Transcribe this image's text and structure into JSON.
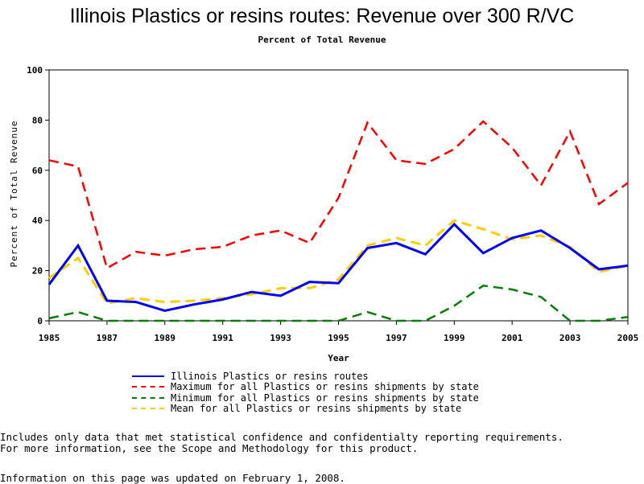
{
  "chart_data": {
    "type": "line",
    "title": "Illinois Plastics or resins routes: Revenue over 300 R/VC",
    "subtitle": "Percent of Total Revenue",
    "xlabel": "Year",
    "ylabel": "Percent of Total Revenue",
    "xlim": [
      1985,
      2005
    ],
    "ylim": [
      0,
      100
    ],
    "x_ticks": [
      "1985",
      "1987",
      "1989",
      "1991",
      "1993",
      "1995",
      "1997",
      "1999",
      "2001",
      "2003",
      "2005"
    ],
    "y_ticks": [
      "0",
      "20",
      "40",
      "60",
      "80",
      "100"
    ],
    "x": [
      1985,
      1986,
      1987,
      1988,
      1989,
      1990,
      1991,
      1992,
      1993,
      1994,
      1995,
      1996,
      1997,
      1998,
      1999,
      2000,
      2001,
      2002,
      2003,
      2004,
      2005
    ],
    "series": [
      {
        "name": "Illinois Plastics or resins routes",
        "color": "#0000ff",
        "dash": "solid",
        "values": [
          14.5,
          30.0,
          8.0,
          7.5,
          4.0,
          6.5,
          8.5,
          11.5,
          10.0,
          15.5,
          15.0,
          29.0,
          31.0,
          26.5,
          38.5,
          27.0,
          33.0,
          36.0,
          29.0,
          20.5,
          22.0
        ]
      },
      {
        "name": "Maximum for all Plastics or resins shipments by state",
        "color": "#ff0000",
        "dash": "dashed",
        "values": [
          64.0,
          61.5,
          21.0,
          27.5,
          26.0,
          28.5,
          29.5,
          34.0,
          36.0,
          31.0,
          49.0,
          79.0,
          64.0,
          62.5,
          68.5,
          79.5,
          69.0,
          54.0,
          75.5,
          46.5,
          55.0
        ]
      },
      {
        "name": "Minimum for all Plastics or resins shipments by state",
        "color": "#008000",
        "dash": "dashed",
        "values": [
          1.0,
          3.5,
          0.0,
          0.0,
          0.0,
          0.0,
          0.0,
          0.0,
          0.0,
          0.0,
          0.0,
          3.5,
          0.0,
          0.0,
          6.0,
          14.0,
          12.5,
          9.5,
          0.0,
          0.0,
          1.5
        ]
      },
      {
        "name": "Mean for all Plastics or resins shipments by state",
        "color": "#ffcc00",
        "dash": "dashed",
        "values": [
          17.0,
          25.0,
          7.0,
          9.0,
          7.5,
          8.0,
          9.0,
          10.5,
          13.0,
          13.0,
          16.5,
          30.0,
          33.0,
          30.0,
          40.0,
          36.5,
          32.5,
          34.0,
          29.5,
          19.5,
          22.0
        ]
      }
    ],
    "grid": false,
    "legend_placement": "bottom"
  },
  "notes": {
    "line1": "Includes only data that met statistical confidence and confidentialty reporting requirements.",
    "line2": "For more information, see the Scope and Methodology for this product.",
    "updated": "Information on this page was updated on February 1, 2008."
  }
}
